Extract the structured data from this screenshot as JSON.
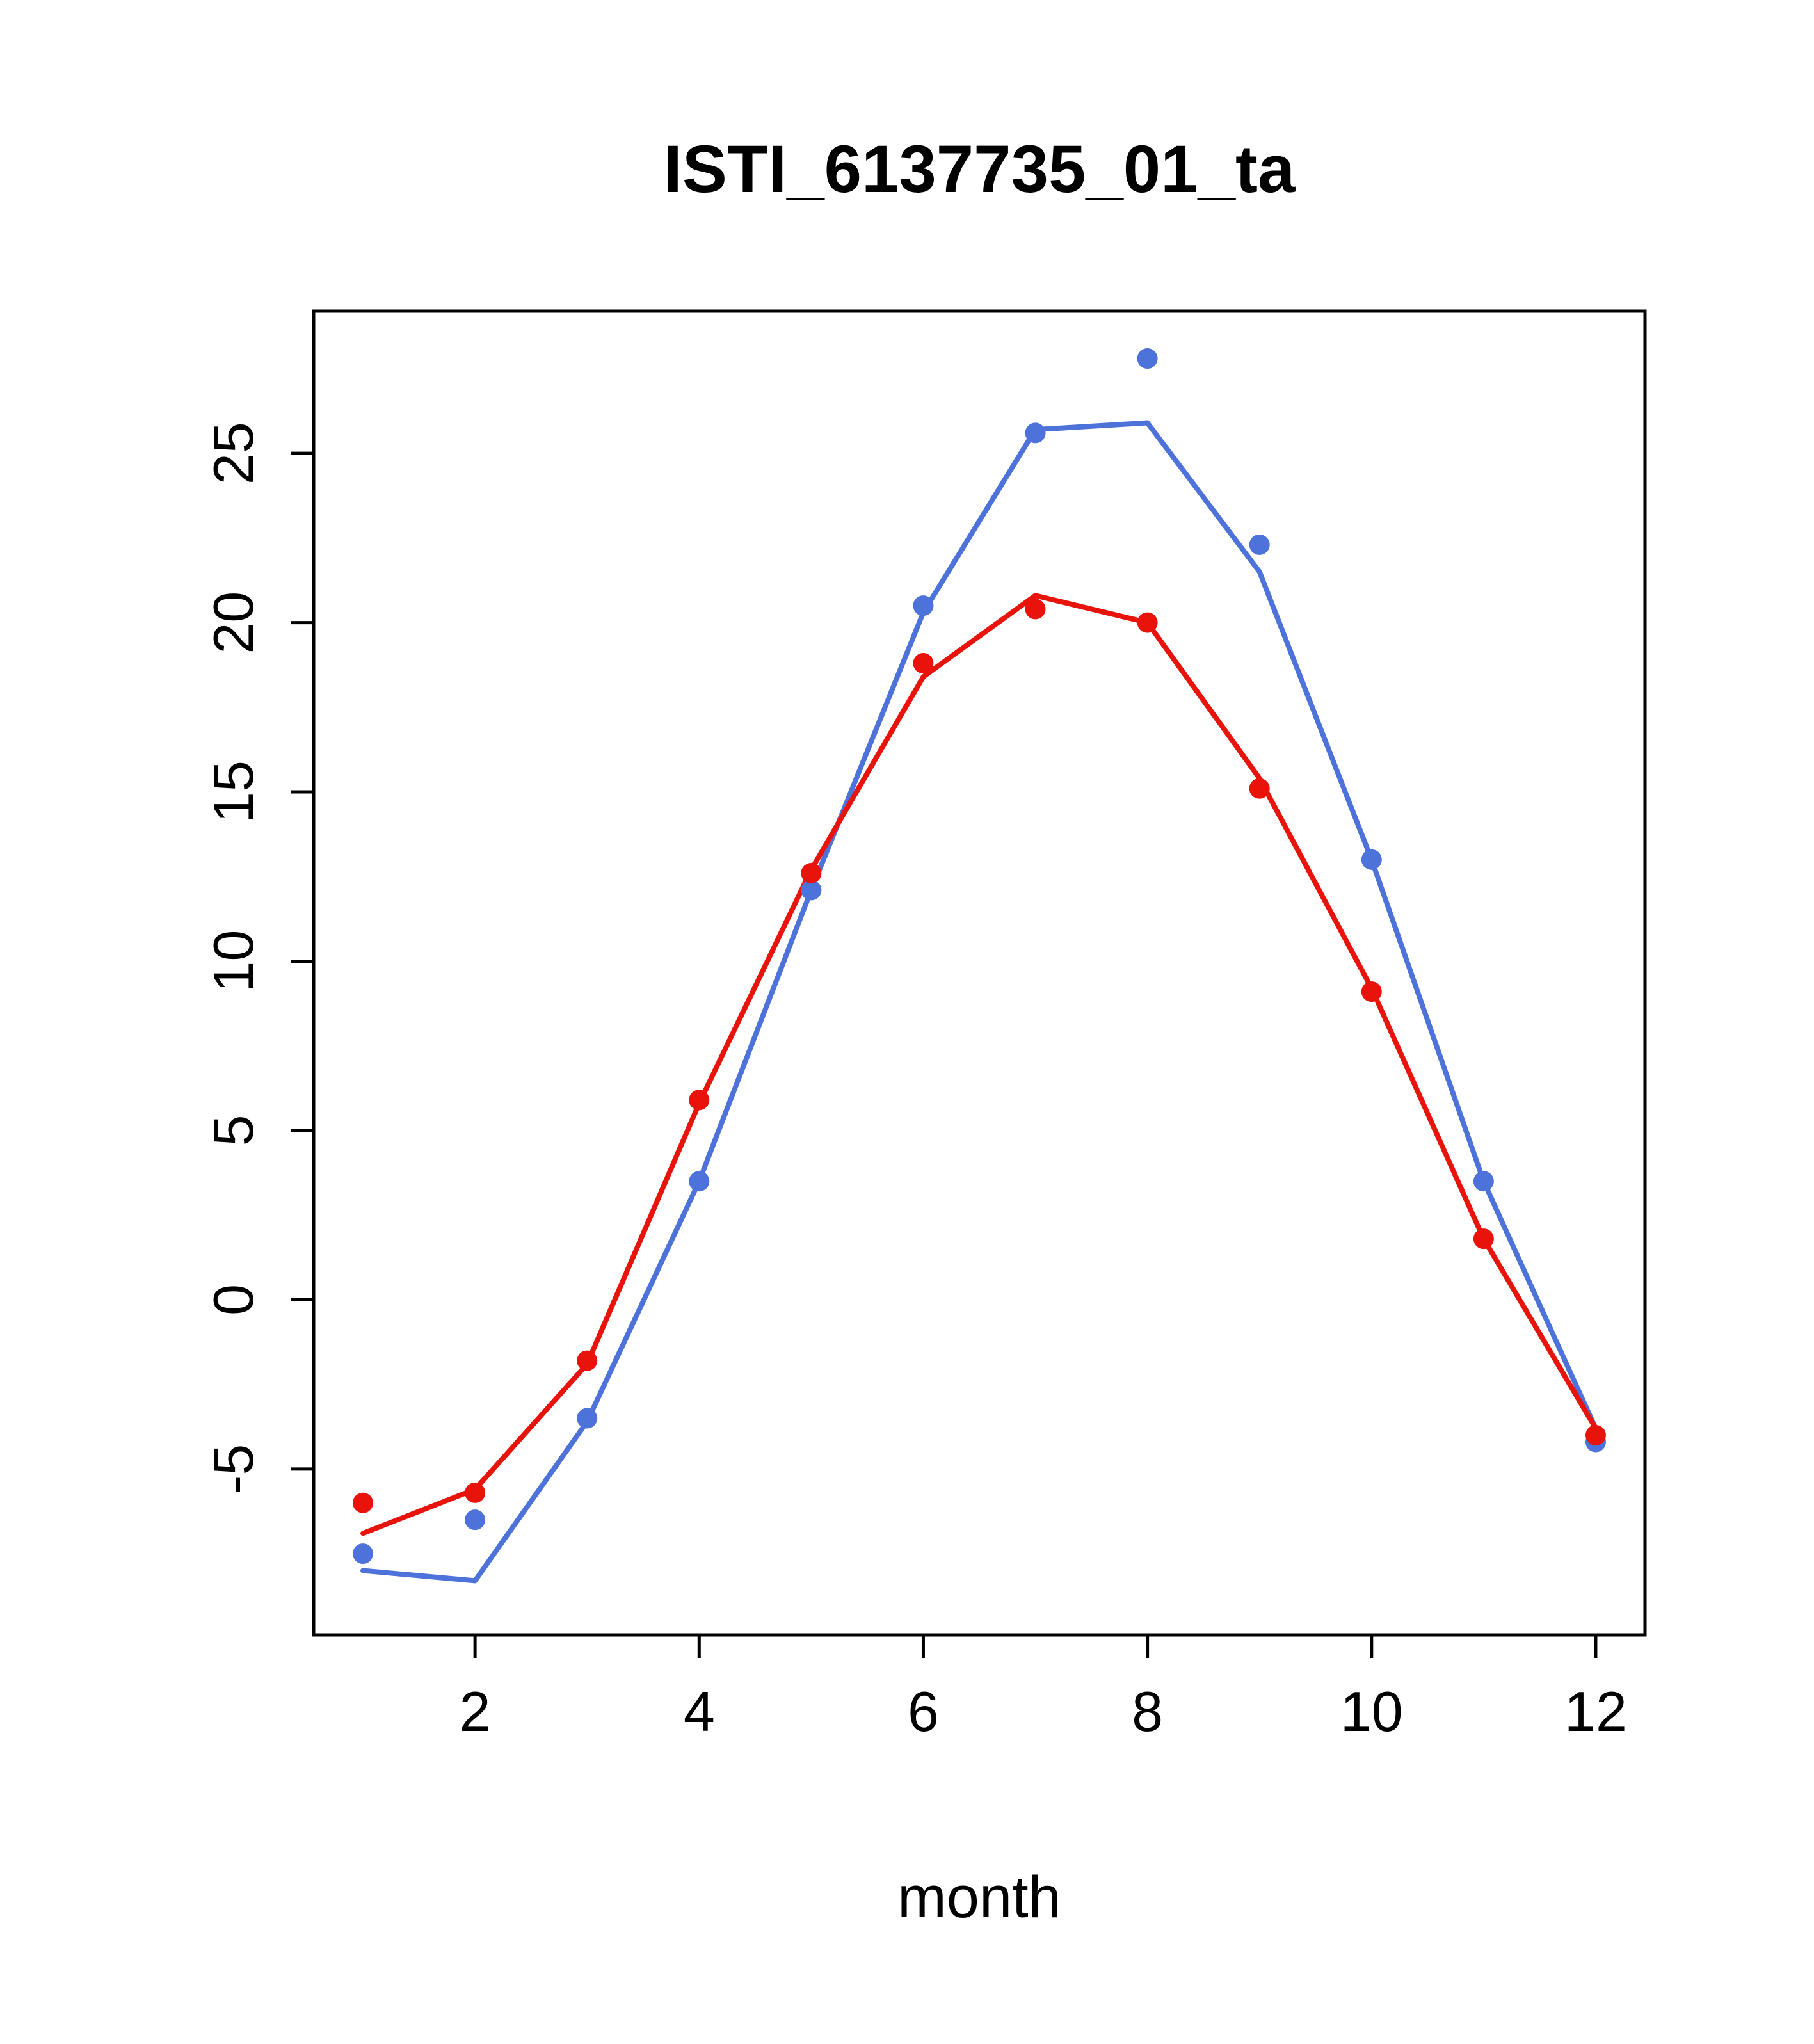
{
  "chart_data": {
    "type": "line",
    "title": "ISTI_6137735_01_ta",
    "xlabel": "month",
    "ylabel": "",
    "x": [
      1,
      2,
      3,
      4,
      5,
      6,
      7,
      8,
      9,
      10,
      11,
      12
    ],
    "xticks": [
      2,
      4,
      6,
      8,
      10,
      12
    ],
    "yticks": [
      -5,
      0,
      5,
      10,
      15,
      20,
      25
    ],
    "xlim": [
      0.56,
      12.44
    ],
    "ylim": [
      -9.9,
      29.2
    ],
    "grid": false,
    "legend": "none",
    "colors": {
      "blue": "#4d72d9",
      "red": "#e8130b",
      "axis": "#000000"
    },
    "series": [
      {
        "name": "blue-series",
        "color_key": "blue",
        "line": [
          -8.0,
          -8.3,
          -3.6,
          3.5,
          12.1,
          20.3,
          25.7,
          25.9,
          21.5,
          13.0,
          3.5,
          -3.8
        ],
        "points": [
          -7.5,
          -6.5,
          -3.5,
          3.5,
          12.1,
          20.5,
          25.6,
          27.8,
          22.3,
          13.0,
          3.5,
          -4.2
        ]
      },
      {
        "name": "red-series",
        "color_key": "red",
        "line": [
          -6.9,
          -5.6,
          -1.9,
          5.8,
          12.7,
          18.4,
          20.8,
          20.0,
          15.4,
          9.2,
          1.8,
          -3.8
        ],
        "points": [
          -6.0,
          -5.7,
          -1.8,
          5.9,
          12.6,
          18.8,
          20.4,
          20.0,
          15.1,
          9.1,
          1.8,
          -4.0
        ]
      }
    ]
  }
}
